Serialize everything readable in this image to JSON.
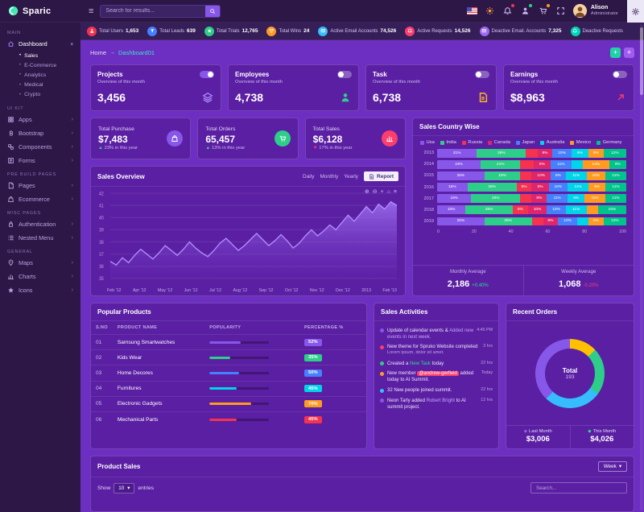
{
  "brand": {
    "name": "Sparic"
  },
  "header": {
    "search_placeholder": "Search for results...",
    "user_name": "Alison",
    "user_role": "Administrator"
  },
  "statbar": {
    "items": [
      {
        "label": "Total Users",
        "value": "1,653",
        "color": "#f5334f",
        "icon": "users-icon"
      },
      {
        "label": "Total Leads",
        "value": "639",
        "color": "#4680ff",
        "icon": "leads-icon"
      },
      {
        "label": "Total Trials",
        "value": "12,765",
        "color": "#2dce89",
        "icon": "trials-icon"
      },
      {
        "label": "Total Wins",
        "value": "24",
        "color": "#ff9b21",
        "icon": "wins-icon"
      },
      {
        "label": "Active Email Accounts",
        "value": "74,526",
        "color": "#35bdfd",
        "icon": "mail-icon"
      },
      {
        "label": "Active Requests",
        "value": "14,526",
        "color": "#fb3e6e",
        "icon": "requests-icon"
      },
      {
        "label": "Deactive Email. Accounts",
        "value": "7,325",
        "color": "#9d68f5",
        "icon": "mail-off-icon"
      },
      {
        "label": "Deactive Requests",
        "value": "",
        "color": "#00d6b6",
        "icon": "requests-off-icon"
      }
    ]
  },
  "sidebar": {
    "sections": [
      {
        "title": "MAIN",
        "items": [
          {
            "label": "Dashboard",
            "icon": "home-icon",
            "active": true,
            "expanded": true,
            "children": [
              {
                "label": "Sales",
                "active": true
              },
              {
                "label": "E-Commerce"
              },
              {
                "label": "Analytics"
              },
              {
                "label": "Medical"
              },
              {
                "label": "Crypto"
              }
            ]
          }
        ]
      },
      {
        "title": "UI KIT",
        "items": [
          {
            "label": "Apps",
            "icon": "apps-icon"
          },
          {
            "label": "Bootstrap",
            "icon": "bootstrap-icon"
          },
          {
            "label": "Components",
            "icon": "components-icon"
          },
          {
            "label": "Forms",
            "icon": "forms-icon"
          }
        ]
      },
      {
        "title": "PRE BUILD PAGES",
        "items": [
          {
            "label": "Pages",
            "icon": "pages-icon"
          },
          {
            "label": "Ecommerce",
            "icon": "ecommerce-icon"
          }
        ]
      },
      {
        "title": "MISC PAGES",
        "items": [
          {
            "label": "Authentication",
            "icon": "auth-icon"
          },
          {
            "label": "Nested Menu",
            "icon": "nested-icon"
          }
        ]
      },
      {
        "title": "GENERAL",
        "items": [
          {
            "label": "Maps",
            "icon": "maps-icon"
          },
          {
            "label": "Charts",
            "icon": "charts-icon"
          },
          {
            "label": "Icons",
            "icon": "icons-icon"
          }
        ]
      }
    ]
  },
  "breadcrumb": {
    "home": "Home",
    "separator": "→",
    "current": "Dashboard01"
  },
  "overview_cards": [
    {
      "title": "Projects",
      "subtitle": "Overview of this month",
      "value": "3,456",
      "icon": "layers-icon",
      "icon_color": "#a985f7",
      "toggle_on": true
    },
    {
      "title": "Employees",
      "subtitle": "Overview of this month",
      "value": "4,738",
      "icon": "employee-icon",
      "icon_color": "#2dce89",
      "toggle_on": false
    },
    {
      "title": "Task",
      "subtitle": "Overview of this month",
      "value": "6,738",
      "icon": "task-icon",
      "icon_color": "#ffb822",
      "toggle_on": false
    },
    {
      "title": "Earnings",
      "subtitle": "Overview of this month",
      "value": "$8,963",
      "icon": "earnings-icon",
      "icon_color": "#fb3e6e",
      "toggle_on": false
    }
  ],
  "totals": [
    {
      "title": "Total Purchase",
      "value": "$7,483",
      "note": "23% in this year",
      "trend": "up",
      "trend_color": "#2dce89",
      "icon": "bag-icon",
      "icon_color": "#8757ea"
    },
    {
      "title": "Total Orders",
      "value": "65,457",
      "note": "13% in this year",
      "trend": "up",
      "trend_color": "#2dce89",
      "icon": "cart-icon",
      "icon_color": "#2dce89"
    },
    {
      "title": "Total Sales",
      "value": "$6,128",
      "note": "17% in this year",
      "trend": "down",
      "trend_color": "#fb3e6e",
      "icon": "chart-icon",
      "icon_color": "#fb3e6e"
    }
  ],
  "sales_overview": {
    "title": "Sales Overview",
    "range_buttons": [
      "Daily",
      "Monthly",
      "Yearly"
    ],
    "report_label": "Report",
    "toolbar_icons": [
      {
        "name": "zoom-in-icon",
        "glyph": "⊕"
      },
      {
        "name": "zoom-out-icon",
        "glyph": "⊖"
      },
      {
        "name": "pan-icon",
        "glyph": "+"
      },
      {
        "name": "home-icon",
        "glyph": "⌂"
      },
      {
        "name": "menu-icon",
        "glyph": "≡"
      }
    ],
    "chart": {
      "type": "area",
      "line_color": "#b18cff",
      "fill_color": "rgba(137,88,236,0.5)",
      "ylim": [
        35,
        42
      ],
      "y_ticks": [
        42,
        41,
        40,
        39,
        38,
        37,
        36,
        35
      ],
      "x_labels": [
        "Feb '12",
        "Apr '12",
        "May '12",
        "Jun '12",
        "Jul '12",
        "Aug '12",
        "Sep '12",
        "Oct '12",
        "Nov '12",
        "Dec '12",
        "2013",
        "Feb '13"
      ],
      "values": [
        36.4,
        36.1,
        36.7,
        36.3,
        36.9,
        37.4,
        37.0,
        36.6,
        37.1,
        37.7,
        37.3,
        36.9,
        37.4,
        38.0,
        37.5,
        37.1,
        36.8,
        37.3,
        37.9,
        38.3,
        37.8,
        37.3,
        37.7,
        38.2,
        38.7,
        38.2,
        37.7,
        38.1,
        38.6,
        38.1,
        37.5,
        37.9,
        38.5,
        39.0,
        38.5,
        38.9,
        39.4,
        39.0,
        39.6,
        40.2,
        39.7,
        40.3,
        40.9,
        40.4,
        41.1,
        40.7,
        41.3,
        41.0
      ]
    }
  },
  "sales_country": {
    "title": "Sales Country Wise",
    "legend": [
      {
        "label": "Usa",
        "color": "#8757ea"
      },
      {
        "label": "India",
        "color": "#2dce89"
      },
      {
        "label": "Russia",
        "color": "#f5334f"
      },
      {
        "label": "Canada",
        "color": "#e0266b"
      },
      {
        "label": "Japan",
        "color": "#4680ff"
      },
      {
        "label": "Australia",
        "color": "#00d4e7"
      },
      {
        "label": "Mexico",
        "color": "#ff9b21"
      },
      {
        "label": "Germany",
        "color": "#00c48c"
      }
    ],
    "chart": {
      "type": "stacked-bar-horizontal",
      "years": [
        "2013",
        "2014",
        "2015",
        "2016",
        "2017",
        "2018",
        "2019"
      ],
      "rows": [
        [
          21,
          26,
          6,
          8,
          10,
          9,
          8,
          12
        ],
        [
          23,
          21,
          7,
          9,
          11,
          6,
          14,
          9
        ],
        [
          25,
          19,
          6,
          10,
          8,
          11,
          10,
          11
        ],
        [
          16,
          26,
          8,
          9,
          10,
          11,
          9,
          11
        ],
        [
          18,
          26,
          6,
          8,
          11,
          9,
          11,
          11
        ],
        [
          15,
          25,
          8,
          10,
          10,
          11,
          6,
          15
        ],
        [
          25,
          25,
          6,
          8,
          10,
          6,
          8,
          12
        ]
      ],
      "x_ticks": [
        "0",
        "20",
        "40",
        "60",
        "80",
        "100"
      ]
    },
    "footer": [
      {
        "label": "Monthly Average",
        "value": "2,186",
        "delta": "+0.40%",
        "delta_color": "#2ddc8f"
      },
      {
        "label": "Weekly Average",
        "value": "1,068",
        "delta": "-0.20%",
        "delta_color": "#fb3e6e"
      }
    ]
  },
  "popular_products": {
    "title": "Popular Products",
    "columns": [
      "S.NO",
      "PRODUCT NAME",
      "POPULARITY",
      "PERCENTAGE %"
    ],
    "rows": [
      {
        "no": "01",
        "name": "Samsung Smartwatches",
        "popularity": 52,
        "pct": "52%",
        "color": "#8757ea"
      },
      {
        "no": "02",
        "name": "Kids Wear",
        "popularity": 35,
        "pct": "35%",
        "color": "#2dce89"
      },
      {
        "no": "03",
        "name": "Home Decores",
        "popularity": 50,
        "pct": "50%",
        "color": "#4680ff"
      },
      {
        "no": "04",
        "name": "Furnitures",
        "popularity": 45,
        "pct": "45%",
        "color": "#00d4e7"
      },
      {
        "no": "05",
        "name": "Electronic Gadgets",
        "popularity": 70,
        "pct": "70%",
        "color": "#ff9b21"
      },
      {
        "no": "06",
        "name": "Mechanical Parts",
        "popularity": 45,
        "pct": "45%",
        "color": "#f5334f"
      }
    ]
  },
  "sales_activities": {
    "title": "Sales Activities",
    "items": [
      {
        "dot": "#8757ea",
        "pre": "Update of calendar events & ",
        "em": "Added new events in next week.",
        "em_color": "#c5a3ff",
        "post": "",
        "sub": "",
        "time": "4:45 PM"
      },
      {
        "dot": "#fb3e6e",
        "pre": "New theme for Spruko Website completed",
        "em": "",
        "post": "",
        "sub": "Lorem ipsum, dolor sit amet.",
        "time": "3 hrs"
      },
      {
        "dot": "#2dce89",
        "pre": "Created a ",
        "em": "New Task",
        "em_color": "#2ddc8f",
        "post": " today",
        "sub": "",
        "time": "22 hrs"
      },
      {
        "dot": "#ff9b21",
        "pre": "New member ",
        "em": "@andrew-gerfield",
        "em_style": "badge",
        "post": " added today to AI Summit.",
        "sub": "",
        "time": "Today"
      },
      {
        "dot": "#35bdfd",
        "pre": "32 New people joined summit.",
        "em": "",
        "post": "",
        "sub": "",
        "time": "22 hrs"
      },
      {
        "dot": "#8757ea",
        "pre": "Neon Tarly added ",
        "em": "Robert Bright",
        "em_color": "#c5a3ff",
        "post": " to AI summit project.",
        "sub": "",
        "time": "12 hrs"
      }
    ]
  },
  "recent_orders": {
    "title": "Recent Orders",
    "chart": {
      "type": "donut",
      "center_label": "Total",
      "center_value": "193",
      "segments": [
        {
          "label": "segment-1",
          "value": 13,
          "color": "#ffc102"
        },
        {
          "label": "segment-2",
          "value": 22,
          "color": "#2dce89"
        },
        {
          "label": "segment-3",
          "value": 27,
          "color": "#35bdfd"
        },
        {
          "label": "segment-4",
          "value": 38,
          "color": "#8757ea"
        }
      ]
    },
    "legend": [
      {
        "label": "Last Month",
        "value": "$3,006",
        "color": "#a05cf0"
      },
      {
        "label": "This Month",
        "value": "$4,026",
        "color": "#2ddc8f"
      }
    ]
  },
  "product_sales": {
    "title": "Product Sales",
    "week_label": "Week",
    "show_label": "Show",
    "entries_value": "10",
    "entries_label": "entries",
    "search_placeholder": "Search..."
  }
}
